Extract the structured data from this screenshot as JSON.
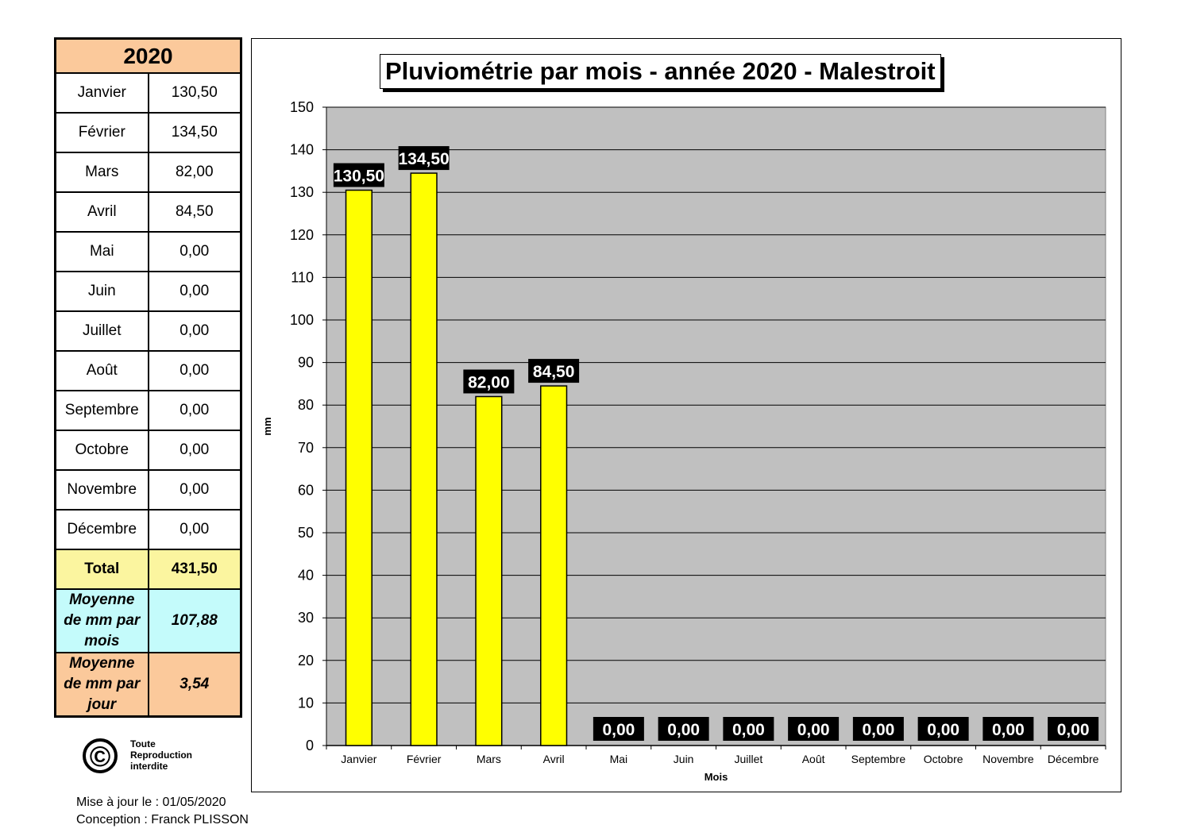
{
  "table": {
    "year": "2020",
    "months": [
      {
        "label": "Janvier",
        "value": "130,50"
      },
      {
        "label": "Février",
        "value": "134,50"
      },
      {
        "label": "Mars",
        "value": "82,00"
      },
      {
        "label": "Avril",
        "value": "84,50"
      },
      {
        "label": "Mai",
        "value": "0,00"
      },
      {
        "label": "Juin",
        "value": "0,00"
      },
      {
        "label": "Juillet",
        "value": "0,00"
      },
      {
        "label": "Août",
        "value": "0,00"
      },
      {
        "label": "Septembre",
        "value": "0,00"
      },
      {
        "label": "Octobre",
        "value": "0,00"
      },
      {
        "label": "Novembre",
        "value": "0,00"
      },
      {
        "label": "Décembre",
        "value": "0,00"
      }
    ],
    "total_label": "Total",
    "total_value": "431,50",
    "avg_month_label_lines": [
      "Moyenne",
      "de mm par",
      "mois"
    ],
    "avg_month_value": "107,88",
    "avg_day_label_lines": [
      "Moyenne",
      "de mm par",
      "jour"
    ],
    "avg_day_value": "3,54",
    "colors": {
      "year": "#fbc99b",
      "total": "#fbf59f",
      "avg_month": "#c4fbfb",
      "avg_day": "#fbc99b"
    }
  },
  "copyright": {
    "symbol": "©",
    "lines": [
      "Toute",
      "Reproduction",
      "interdite"
    ]
  },
  "footer": {
    "updated": "Mise à jour le : 01/05/2020",
    "design": "Conception : Franck PLISSON"
  },
  "chart_data": {
    "type": "bar",
    "title": "Pluviométrie par mois - année 2020 - Malestroit",
    "categories": [
      "Janvier",
      "Février",
      "Mars",
      "Avril",
      "Mai",
      "Juin",
      "Juillet",
      "Août",
      "Septembre",
      "Octobre",
      "Novembre",
      "Décembre"
    ],
    "values": [
      130.5,
      134.5,
      82.0,
      84.5,
      0,
      0,
      0,
      0,
      0,
      0,
      0,
      0
    ],
    "data_labels": [
      "130,50",
      "134,50",
      "82,00",
      "84,50",
      "0,00",
      "0,00",
      "0,00",
      "0,00",
      "0,00",
      "0,00",
      "0,00",
      "0,00"
    ],
    "xlabel": "Mois",
    "ylabel": "mm",
    "ylim": [
      0,
      150
    ],
    "yticks": [
      0,
      10,
      20,
      30,
      40,
      50,
      60,
      70,
      80,
      90,
      100,
      110,
      120,
      130,
      140,
      150
    ],
    "grid": true,
    "colors": {
      "bar": "#ffff00",
      "plot_bg": "#c0c0c0",
      "label_bg": "#000000",
      "label_text": "#ffffff"
    }
  }
}
